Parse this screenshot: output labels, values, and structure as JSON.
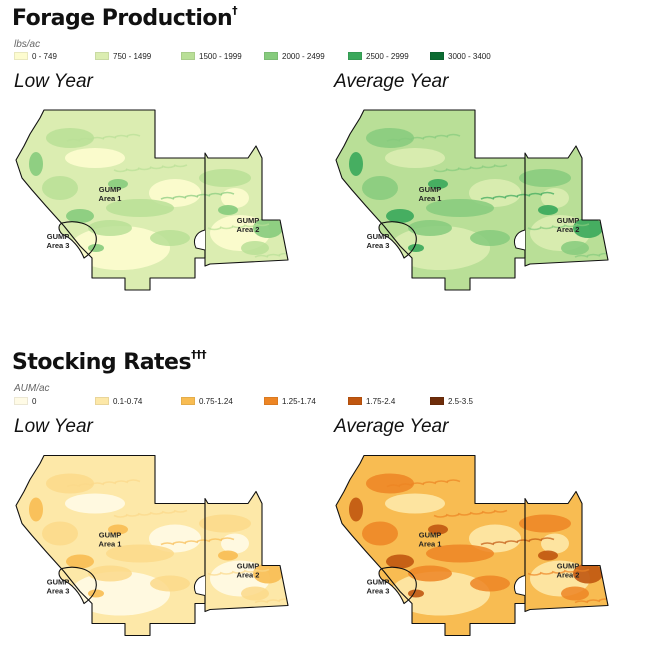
{
  "forage": {
    "title": "Forage Production",
    "title_mark": "†",
    "units": "lbs/ac",
    "legend": [
      {
        "label": "0 - 749",
        "color": "#fdfccf"
      },
      {
        "label": "750 - 1499",
        "color": "#dbedb1"
      },
      {
        "label": "1500 - 1999",
        "color": "#b9df97"
      },
      {
        "label": "2000 - 2499",
        "color": "#86cb7d"
      },
      {
        "label": "2500 - 2999",
        "color": "#3aa85b"
      },
      {
        "label": "3000 - 3400",
        "color": "#0b6b31"
      }
    ],
    "panels": [
      {
        "title": "Low Year",
        "base": "#dbedb1",
        "patch": "#b9df97",
        "accent": "#86cb7d",
        "pale": "#fdfccf"
      },
      {
        "title": "Average Year",
        "base": "#b9df97",
        "patch": "#86cb7d",
        "accent": "#3aa85b",
        "pale": "#dbedb1"
      }
    ]
  },
  "stocking": {
    "title": "Stocking Rates",
    "title_mark": "†††",
    "units": "AUM/ac",
    "legend": [
      {
        "label": "0",
        "color": "#fffbe6"
      },
      {
        "label": "0.1-0.74",
        "color": "#fde8a8"
      },
      {
        "label": "0.75-1.24",
        "color": "#f8bc52"
      },
      {
        "label": "1.25-1.74",
        "color": "#ed8524"
      },
      {
        "label": "1.75-2.4",
        "color": "#c0560f"
      },
      {
        "label": "2.5-3.5",
        "color": "#6e2d0a"
      }
    ],
    "panels": [
      {
        "title": "Low Year",
        "base": "#fde8a8",
        "patch": "#fbd98a",
        "accent": "#f8bc52",
        "pale": "#fffbe6"
      },
      {
        "title": "Average Year",
        "base": "#f8bc52",
        "patch": "#ed8524",
        "accent": "#c0560f",
        "pale": "#fde8a8"
      }
    ]
  },
  "labels": {
    "area1_name": "GUMP",
    "area1_num": "Area 1",
    "area2_name": "GUMP",
    "area2_num": "Area 2",
    "area3_name": "GUMP",
    "area3_num": "Area 3"
  }
}
